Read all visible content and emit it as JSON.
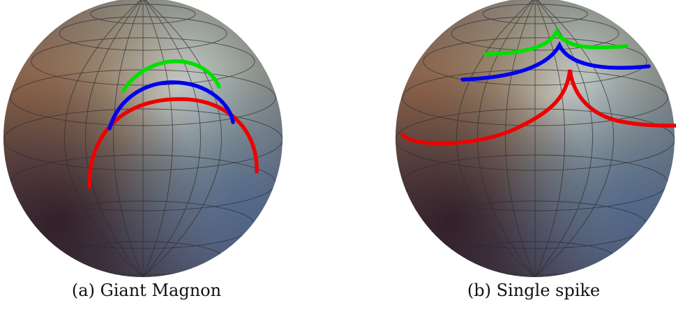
{
  "figures": [
    {
      "caption": "(a) Giant Magnon",
      "curves": [
        {
          "color": "#00e000",
          "label": "green"
        },
        {
          "color": "#0000ee",
          "label": "blue"
        },
        {
          "color": "#ee0000",
          "label": "red"
        }
      ]
    },
    {
      "caption": "(b) Single spike",
      "curves": [
        {
          "color": "#00e000",
          "label": "green"
        },
        {
          "color": "#0000ee",
          "label": "blue"
        },
        {
          "color": "#ee0000",
          "label": "red"
        }
      ]
    }
  ]
}
